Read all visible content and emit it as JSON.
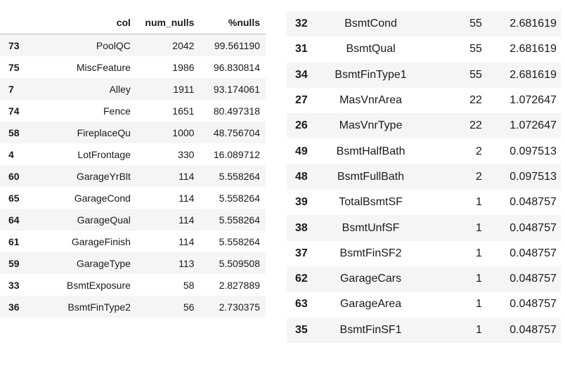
{
  "left_table": {
    "headers": [
      "",
      "col",
      "num_nulls",
      "%nulls"
    ],
    "rows": [
      {
        "idx": "73",
        "col": "PoolQC",
        "num_nulls": "2042",
        "pct": "99.561190"
      },
      {
        "idx": "75",
        "col": "MiscFeature",
        "num_nulls": "1986",
        "pct": "96.830814"
      },
      {
        "idx": "7",
        "col": "Alley",
        "num_nulls": "1911",
        "pct": "93.174061"
      },
      {
        "idx": "74",
        "col": "Fence",
        "num_nulls": "1651",
        "pct": "80.497318"
      },
      {
        "idx": "58",
        "col": "FireplaceQu",
        "num_nulls": "1000",
        "pct": "48.756704"
      },
      {
        "idx": "4",
        "col": "LotFrontage",
        "num_nulls": "330",
        "pct": "16.089712"
      },
      {
        "idx": "60",
        "col": "GarageYrBlt",
        "num_nulls": "114",
        "pct": "5.558264"
      },
      {
        "idx": "65",
        "col": "GarageCond",
        "num_nulls": "114",
        "pct": "5.558264"
      },
      {
        "idx": "64",
        "col": "GarageQual",
        "num_nulls": "114",
        "pct": "5.558264"
      },
      {
        "idx": "61",
        "col": "GarageFinish",
        "num_nulls": "114",
        "pct": "5.558264"
      },
      {
        "idx": "59",
        "col": "GarageType",
        "num_nulls": "113",
        "pct": "5.509508"
      },
      {
        "idx": "33",
        "col": "BsmtExposure",
        "num_nulls": "58",
        "pct": "2.827889"
      },
      {
        "idx": "36",
        "col": "BsmtFinType2",
        "num_nulls": "56",
        "pct": "2.730375"
      }
    ]
  },
  "right_table": {
    "rows": [
      {
        "idx": "32",
        "col": "BsmtCond",
        "num_nulls": "55",
        "pct": "2.681619"
      },
      {
        "idx": "31",
        "col": "BsmtQual",
        "num_nulls": "55",
        "pct": "2.681619"
      },
      {
        "idx": "34",
        "col": "BsmtFinType1",
        "num_nulls": "55",
        "pct": "2.681619"
      },
      {
        "idx": "27",
        "col": "MasVnrArea",
        "num_nulls": "22",
        "pct": "1.072647"
      },
      {
        "idx": "26",
        "col": "MasVnrType",
        "num_nulls": "22",
        "pct": "1.072647"
      },
      {
        "idx": "49",
        "col": "BsmtHalfBath",
        "num_nulls": "2",
        "pct": "0.097513"
      },
      {
        "idx": "48",
        "col": "BsmtFullBath",
        "num_nulls": "2",
        "pct": "0.097513"
      },
      {
        "idx": "39",
        "col": "TotalBsmtSF",
        "num_nulls": "1",
        "pct": "0.048757"
      },
      {
        "idx": "38",
        "col": "BsmtUnfSF",
        "num_nulls": "1",
        "pct": "0.048757"
      },
      {
        "idx": "37",
        "col": "BsmtFinSF2",
        "num_nulls": "1",
        "pct": "0.048757"
      },
      {
        "idx": "62",
        "col": "GarageCars",
        "num_nulls": "1",
        "pct": "0.048757"
      },
      {
        "idx": "63",
        "col": "GarageArea",
        "num_nulls": "1",
        "pct": "0.048757"
      },
      {
        "idx": "35",
        "col": "BsmtFinSF1",
        "num_nulls": "1",
        "pct": "0.048757"
      }
    ]
  }
}
